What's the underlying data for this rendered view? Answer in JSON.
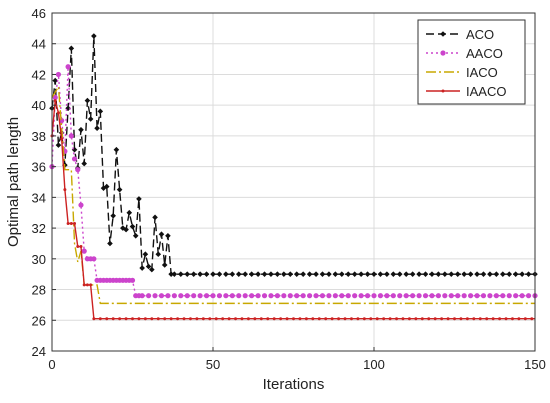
{
  "chart_data": {
    "type": "line",
    "xlabel": "Iterations",
    "ylabel": "Optimal path length",
    "xlim": [
      0,
      150
    ],
    "ylim": [
      24,
      46
    ],
    "xticks": [
      0,
      50,
      100,
      150
    ],
    "yticks": [
      24,
      26,
      28,
      30,
      32,
      34,
      36,
      38,
      40,
      42,
      44,
      46
    ],
    "grid": true,
    "legend_position": "top-right",
    "series": [
      {
        "name": "ACO",
        "color": "#111111",
        "dash": "8,4",
        "marker": "diamond",
        "x": [
          0,
          1,
          2,
          3,
          4,
          5,
          6,
          7,
          8,
          9,
          10,
          11,
          12,
          13,
          14,
          15,
          16,
          17,
          18,
          19,
          20,
          21,
          22,
          23,
          24,
          25,
          26,
          27,
          28,
          29,
          30,
          31,
          32,
          33,
          34,
          35,
          36,
          37,
          38,
          150
        ],
        "y": [
          39.8,
          41.6,
          37.4,
          38.2,
          36.1,
          39.8,
          43.7,
          37.1,
          35.9,
          38.4,
          36.2,
          40.3,
          39.1,
          44.5,
          38.5,
          39.6,
          34.6,
          34.7,
          31.0,
          32.8,
          37.1,
          34.5,
          32.0,
          31.9,
          33.0,
          32.1,
          31.5,
          33.9,
          29.4,
          30.3,
          29.5,
          29.3,
          32.7,
          30.3,
          31.6,
          29.6,
          31.5,
          29.0,
          29.0,
          29.0
        ]
      },
      {
        "name": "AACO",
        "color": "#cc44cc",
        "dash": "2,3",
        "marker": "circle",
        "x": [
          0,
          1,
          2,
          3,
          4,
          5,
          6,
          7,
          8,
          9,
          10,
          11,
          12,
          13,
          14,
          15,
          16,
          17,
          18,
          19,
          20,
          21,
          22,
          23,
          24,
          25,
          26,
          27,
          28,
          150
        ],
        "y": [
          36.0,
          40.5,
          42.0,
          39.0,
          37.0,
          42.5,
          38.0,
          36.5,
          35.8,
          33.5,
          30.5,
          30.0,
          30.0,
          30.0,
          28.6,
          28.6,
          28.6,
          28.6,
          28.6,
          28.6,
          28.6,
          28.6,
          28.6,
          28.6,
          28.6,
          28.6,
          27.6,
          27.6,
          27.6,
          27.6
        ]
      },
      {
        "name": "IACO",
        "color": "#c8a800",
        "dash": "10,3,2,3",
        "marker": "none",
        "x": [
          0,
          2,
          4,
          6,
          7,
          8,
          9,
          10,
          11,
          12,
          14,
          15,
          16,
          150
        ],
        "y": [
          40.5,
          41.2,
          35.8,
          35.8,
          31.0,
          29.8,
          30.5,
          28.3,
          28.3,
          28.3,
          28.3,
          27.1,
          27.1,
          27.1
        ]
      },
      {
        "name": "IAACO",
        "color": "#cc2222",
        "dash": "",
        "marker": "dot",
        "x": [
          0,
          1,
          2,
          3,
          4,
          5,
          6,
          7,
          8,
          9,
          10,
          11,
          12,
          13,
          150
        ],
        "y": [
          38.0,
          40.3,
          39.5,
          37.8,
          34.5,
          32.3,
          32.3,
          32.3,
          30.8,
          30.8,
          28.3,
          28.3,
          28.3,
          26.1,
          26.1
        ]
      }
    ]
  }
}
